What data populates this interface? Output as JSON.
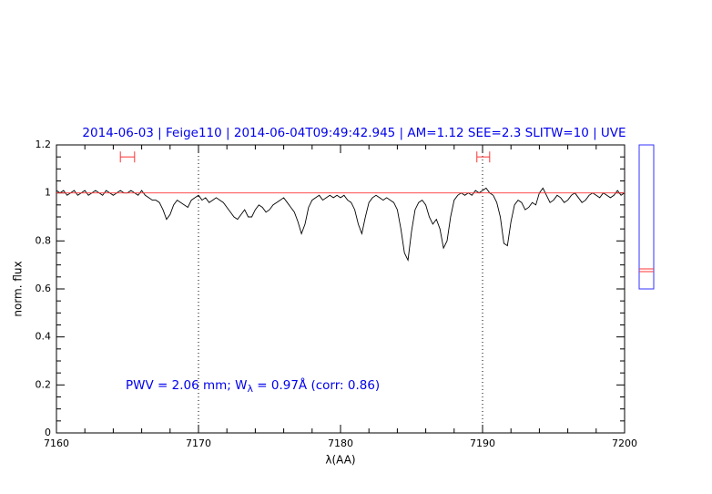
{
  "chart_data": {
    "type": "line",
    "title": "2014-06-03 | Feige110 | 2014-06-04T09:49:42.945 | AM=1.12 SEE=2.3 SLITW=10 | UVE",
    "x_label": "λ(AA)",
    "y_label": "norm. flux",
    "annotation": [
      "PWV = 2.06 mm; W",
      "λ",
      " = 0.97Å (corr: 0.86)"
    ],
    "xlim": [
      7160,
      7200
    ],
    "ylim": [
      0,
      1.2
    ],
    "xticks": [
      7160,
      7170,
      7180,
      7190,
      7200
    ],
    "yticks": [
      0,
      0.2,
      0.4,
      0.6,
      0.8,
      1,
      1.2
    ],
    "xminorticks": [
      7162,
      7164,
      7166,
      7168,
      7172,
      7174,
      7176,
      7178,
      7182,
      7184,
      7186,
      7188,
      7192,
      7194,
      7196,
      7198
    ],
    "yminorticks": [
      0.05,
      0.1,
      0.15,
      0.25,
      0.3,
      0.35,
      0.45,
      0.5,
      0.55,
      0.65,
      0.7,
      0.75,
      0.85,
      0.9,
      0.95,
      1.05,
      1.1,
      1.15
    ],
    "reference_line": {
      "y": 1,
      "color": "#ff3333"
    },
    "vlines": [
      7170,
      7190
    ],
    "ranges": [
      {
        "x": [
          7164.5,
          7165.5
        ],
        "y": 1.15
      },
      {
        "x": [
          7189.6,
          7190.5
        ],
        "y": 1.15
      }
    ],
    "range_color": "#ff3333",
    "series": [
      {
        "color": "#000000",
        "x": [
          7160,
          7160.25,
          7160.5,
          7160.75,
          7161,
          7161.25,
          7161.5,
          7161.75,
          7162,
          7162.25,
          7162.5,
          7162.75,
          7163,
          7163.25,
          7163.5,
          7163.75,
          7164,
          7164.25,
          7164.5,
          7164.75,
          7165,
          7165.25,
          7165.5,
          7165.75,
          7166,
          7166.25,
          7166.5,
          7166.75,
          7167,
          7167.25,
          7167.5,
          7167.75,
          7168,
          7168.25,
          7168.5,
          7168.75,
          7169,
          7169.25,
          7169.5,
          7169.75,
          7170,
          7170.25,
          7170.5,
          7170.75,
          7171,
          7171.25,
          7171.5,
          7171.75,
          7172,
          7172.25,
          7172.5,
          7172.75,
          7173,
          7173.25,
          7173.5,
          7173.75,
          7174,
          7174.25,
          7174.5,
          7174.75,
          7175,
          7175.25,
          7175.5,
          7175.75,
          7176,
          7176.25,
          7176.5,
          7176.75,
          7177,
          7177.25,
          7177.5,
          7177.75,
          7178,
          7178.25,
          7178.5,
          7178.75,
          7179,
          7179.25,
          7179.5,
          7179.75,
          7180,
          7180.25,
          7180.5,
          7180.75,
          7181,
          7181.25,
          7181.5,
          7181.75,
          7182,
          7182.25,
          7182.5,
          7182.75,
          7183,
          7183.25,
          7183.5,
          7183.75,
          7184,
          7184.25,
          7184.5,
          7184.75,
          7185,
          7185.25,
          7185.5,
          7185.75,
          7186,
          7186.25,
          7186.5,
          7186.75,
          7187,
          7187.25,
          7187.5,
          7187.75,
          7188,
          7188.25,
          7188.5,
          7188.75,
          7189,
          7189.25,
          7189.5,
          7189.75,
          7190,
          7190.25,
          7190.5,
          7190.75,
          7191,
          7191.25,
          7191.5,
          7191.75,
          7192,
          7192.25,
          7192.5,
          7192.75,
          7193,
          7193.25,
          7193.5,
          7193.75,
          7194,
          7194.25,
          7194.5,
          7194.75,
          7195,
          7195.25,
          7195.5,
          7195.75,
          7196,
          7196.25,
          7196.5,
          7196.75,
          7197,
          7197.25,
          7197.5,
          7197.75,
          7198,
          7198.25,
          7198.5,
          7198.75,
          7199,
          7199.25,
          7199.5,
          7199.75,
          7200
        ],
        "values": [
          1.01,
          1.0,
          1.01,
          0.99,
          1.0,
          1.01,
          0.99,
          1.0,
          1.01,
          0.99,
          1.0,
          1.01,
          1.0,
          0.99,
          1.01,
          1.0,
          0.99,
          1.0,
          1.01,
          1.0,
          1.0,
          1.01,
          1.0,
          0.99,
          1.01,
          0.99,
          0.98,
          0.97,
          0.97,
          0.96,
          0.93,
          0.89,
          0.91,
          0.95,
          0.97,
          0.96,
          0.95,
          0.94,
          0.97,
          0.98,
          0.99,
          0.97,
          0.98,
          0.96,
          0.97,
          0.98,
          0.97,
          0.96,
          0.94,
          0.92,
          0.9,
          0.89,
          0.91,
          0.93,
          0.9,
          0.9,
          0.93,
          0.95,
          0.94,
          0.92,
          0.93,
          0.95,
          0.96,
          0.97,
          0.98,
          0.96,
          0.94,
          0.92,
          0.88,
          0.83,
          0.87,
          0.94,
          0.97,
          0.98,
          0.99,
          0.97,
          0.98,
          0.99,
          0.98,
          0.99,
          0.98,
          0.99,
          0.97,
          0.96,
          0.93,
          0.87,
          0.83,
          0.9,
          0.96,
          0.98,
          0.99,
          0.98,
          0.97,
          0.98,
          0.97,
          0.96,
          0.93,
          0.85,
          0.75,
          0.72,
          0.84,
          0.93,
          0.96,
          0.97,
          0.95,
          0.9,
          0.87,
          0.89,
          0.85,
          0.77,
          0.8,
          0.9,
          0.97,
          0.99,
          1.0,
          0.99,
          1.0,
          0.99,
          1.01,
          1.0,
          1.01,
          1.02,
          1.0,
          0.99,
          0.96,
          0.9,
          0.79,
          0.78,
          0.88,
          0.95,
          0.97,
          0.96,
          0.93,
          0.94,
          0.96,
          0.95,
          1.0,
          1.02,
          0.99,
          0.96,
          0.97,
          0.99,
          0.98,
          0.96,
          0.97,
          0.99,
          1.0,
          0.98,
          0.96,
          0.97,
          0.99,
          1.0,
          0.99,
          0.98,
          1.0,
          0.99,
          0.98,
          0.99,
          1.01,
          0.99,
          1.0
        ]
      }
    ]
  }
}
